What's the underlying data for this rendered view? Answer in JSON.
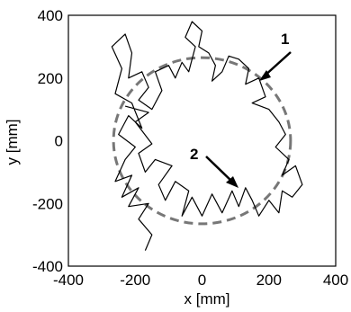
{
  "chart_data": {
    "type": "line",
    "title": "",
    "xlabel": "x [mm]",
    "ylabel": "y [mm]",
    "xlim": [
      -400,
      400
    ],
    "ylim": [
      -400,
      400
    ],
    "x_ticks": [
      "-400",
      "-200",
      "0",
      "200",
      "400"
    ],
    "y_ticks": [
      "400",
      "200",
      "0",
      "-200",
      "-400"
    ],
    "grid": false,
    "legend": "none",
    "reference_circle": {
      "center": [
        0,
        0
      ],
      "radius": 265,
      "style": "dashed",
      "color": "#777777"
    },
    "series": [
      {
        "color": "#000000",
        "points": [
          [
            -170,
            -350
          ],
          [
            -150,
            -300
          ],
          [
            -190,
            -250
          ],
          [
            -160,
            -200
          ],
          [
            -220,
            -210
          ],
          [
            -190,
            -150
          ],
          [
            -240,
            -180
          ],
          [
            -210,
            -110
          ],
          [
            -260,
            -130
          ],
          [
            -230,
            -60
          ],
          [
            -200,
            -20
          ],
          [
            -250,
            20
          ],
          [
            -220,
            80
          ],
          [
            -180,
            40
          ],
          [
            -210,
            120
          ],
          [
            -260,
            150
          ],
          [
            -240,
            230
          ],
          [
            -270,
            300
          ],
          [
            -230,
            340
          ],
          [
            -210,
            280
          ],
          [
            -220,
            200
          ],
          [
            -180,
            220
          ],
          [
            -160,
            170
          ],
          [
            -190,
            130
          ],
          [
            -150,
            100
          ],
          [
            -120,
            160
          ],
          [
            -140,
            220
          ],
          [
            -100,
            240
          ],
          [
            -80,
            200
          ],
          [
            -60,
            250
          ],
          [
            -40,
            220
          ],
          [
            -20,
            300
          ],
          [
            -50,
            330
          ],
          [
            -30,
            380
          ],
          [
            0,
            350
          ],
          [
            -10,
            300
          ],
          [
            20,
            280
          ],
          [
            40,
            240
          ],
          [
            30,
            190
          ],
          [
            60,
            220
          ],
          [
            80,
            270
          ],
          [
            110,
            260
          ],
          [
            140,
            230
          ],
          [
            130,
            180
          ],
          [
            170,
            200
          ],
          [
            190,
            140
          ],
          [
            150,
            120
          ],
          [
            200,
            100
          ],
          [
            230,
            60
          ],
          [
            250,
            20
          ],
          [
            220,
            -20
          ],
          [
            260,
            -60
          ],
          [
            240,
            -110
          ],
          [
            280,
            -80
          ],
          [
            300,
            -140
          ],
          [
            270,
            -180
          ],
          [
            240,
            -160
          ],
          [
            230,
            -230
          ],
          [
            200,
            -190
          ],
          [
            170,
            -240
          ],
          [
            150,
            -190
          ],
          [
            130,
            -150
          ],
          [
            110,
            -210
          ],
          [
            90,
            -160
          ],
          [
            60,
            -230
          ],
          [
            30,
            -170
          ],
          [
            0,
            -240
          ],
          [
            -30,
            -180
          ],
          [
            -60,
            -240
          ],
          [
            -40,
            -160
          ],
          [
            -80,
            -130
          ],
          [
            -110,
            -190
          ],
          [
            -130,
            -140
          ],
          [
            -90,
            -80
          ],
          [
            -140,
            -60
          ],
          [
            -170,
            -100
          ],
          [
            -190,
            -40
          ],
          [
            -150,
            -10
          ],
          [
            -200,
            60
          ],
          [
            -160,
            90
          ],
          [
            -230,
            110
          ]
        ]
      }
    ],
    "annotations": [
      {
        "text": "1",
        "target": [
          160,
          160
        ]
      },
      {
        "text": "2",
        "target": [
          80,
          -110
        ]
      }
    ]
  }
}
